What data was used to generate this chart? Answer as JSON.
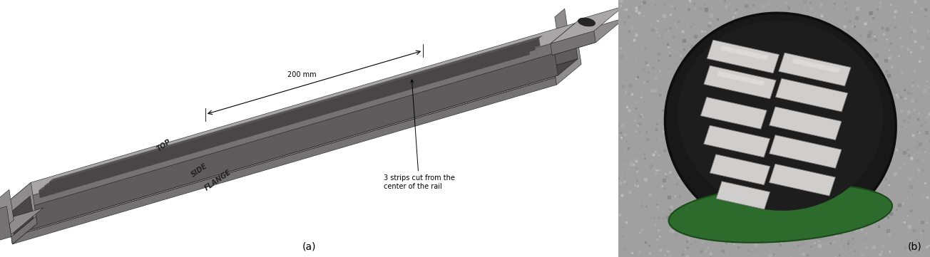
{
  "fig_width": 13.04,
  "fig_height": 3.61,
  "dpi": 100,
  "bg_color": "#ffffff",
  "label_a_text": "(a)",
  "label_b_text": "(b)",
  "label_fontsize": 10,
  "annotation_200mm": "200 mm",
  "annotation_strips": "3 strips cut from the\ncenter of the rail",
  "label_top": "TOP",
  "label_side": "SIDE",
  "label_flange": "FLANGE",
  "rail_top_color": "#a8a6a6",
  "rail_mid_color": "#8e8c8c",
  "rail_dark_color": "#747272",
  "rail_darker_color": "#5e5c5c",
  "rail_slot_color": "#555353",
  "rail_inner_color": "#484646",
  "rail_edge_color": "#1e1e1e",
  "puck_bg_color": "#9a9898",
  "puck_outer_color": "#1a1a1a",
  "puck_green_color": "#3a7a3a",
  "spec_color": "#d0cdcd",
  "spec_edge_color": "#7a7878"
}
